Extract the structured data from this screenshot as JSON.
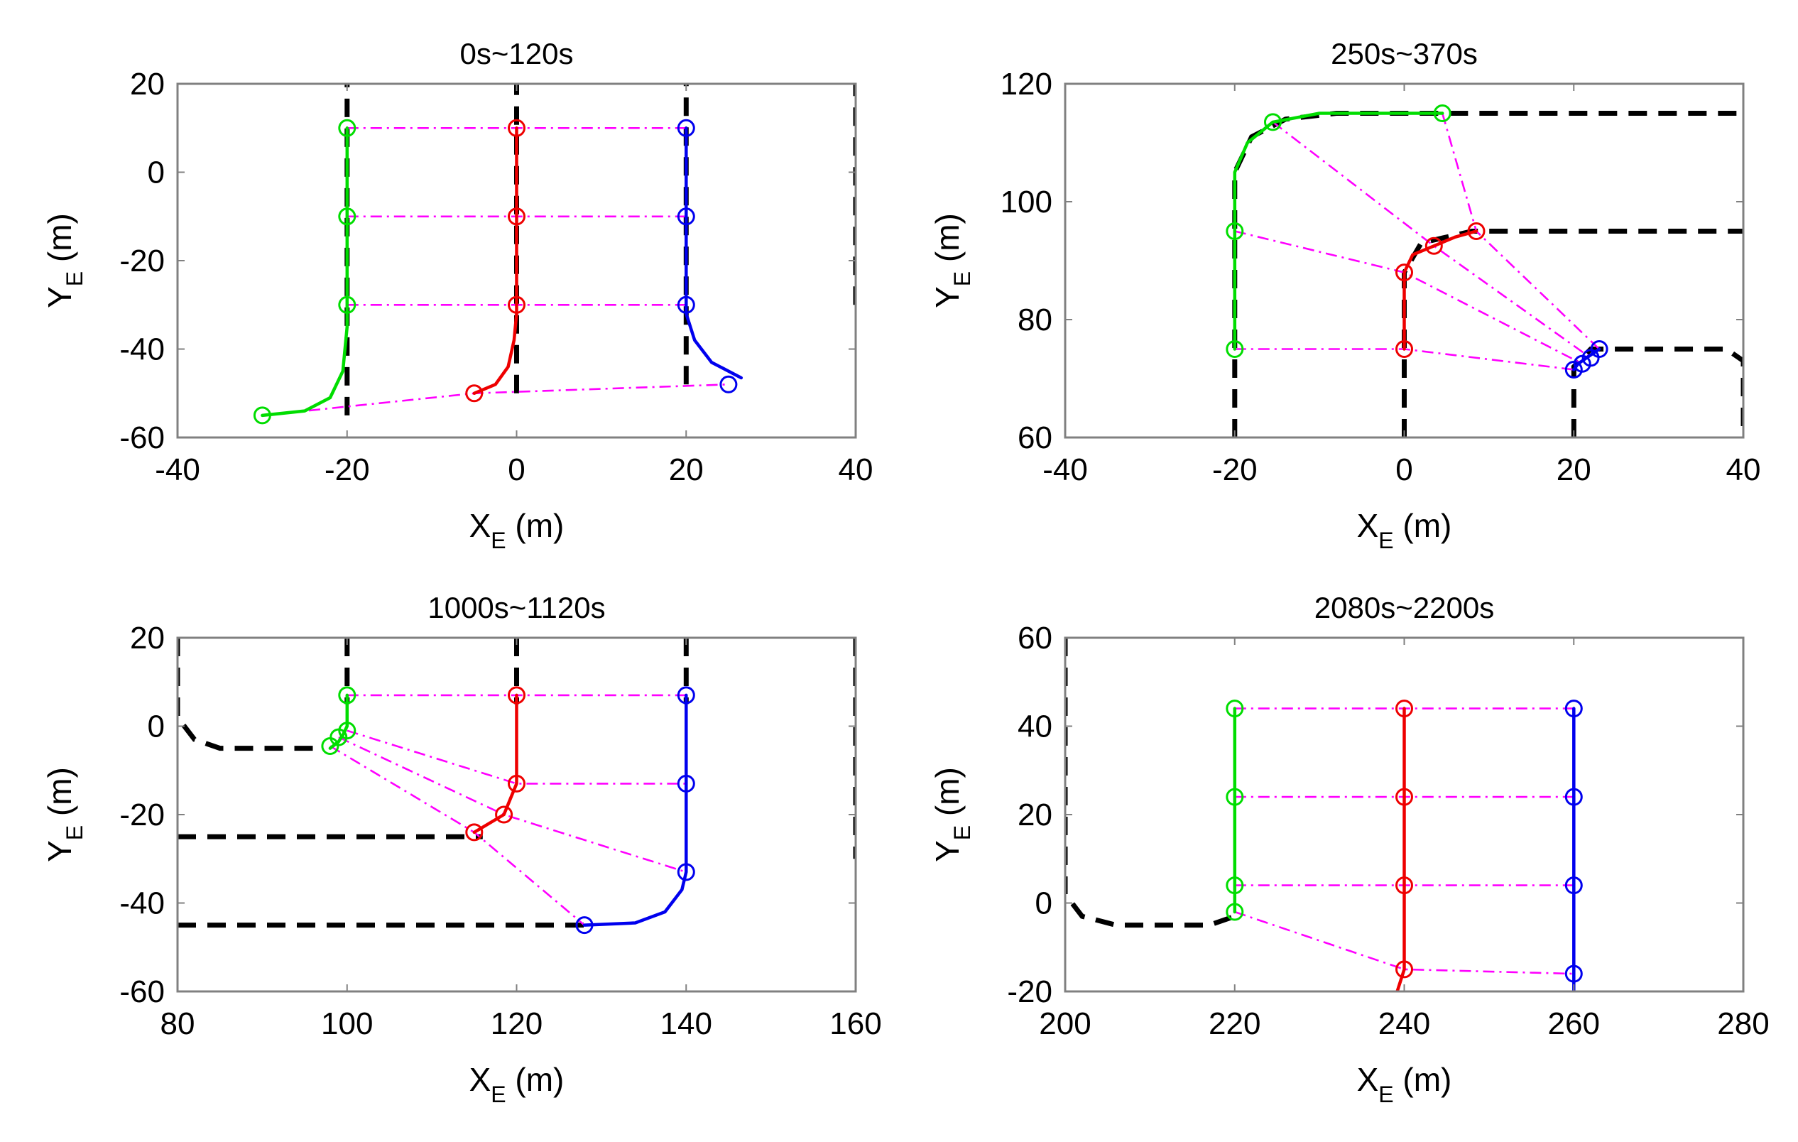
{
  "figure": {
    "background": "#ffffff"
  },
  "colors": {
    "follower_left": "#00dd00",
    "leader": "#ee0000",
    "follower_right": "#0000ee",
    "formation_link": "#ff00ff",
    "reference_path": "#000000",
    "axes": "#808080"
  },
  "chart_data": [
    {
      "type": "line",
      "title": "0s~120s",
      "xlabel": "X",
      "xlabel_sub": "E",
      "xlabel_unit": " (m)",
      "ylabel": "Y",
      "ylabel_sub": "E",
      "ylabel_unit": " (m)",
      "xlim": [
        -40,
        40
      ],
      "ylim": [
        -60,
        20
      ],
      "xticks": [
        -40,
        -20,
        0,
        20,
        40
      ],
      "yticks": [
        -60,
        -40,
        -20,
        0,
        20
      ],
      "reference_paths": [
        [
          [
            -20,
            -55
          ],
          [
            -20,
            20
          ]
        ],
        [
          [
            0,
            -50
          ],
          [
            0,
            20
          ]
        ],
        [
          [
            20,
            -48
          ],
          [
            20,
            20
          ]
        ],
        [
          [
            40,
            -30
          ],
          [
            40,
            20
          ]
        ]
      ],
      "trajectories": [
        {
          "name": "green",
          "points": [
            [
              -30,
              -55
            ],
            [
              -25,
              -54
            ],
            [
              -22,
              -51
            ],
            [
              -20.5,
              -45
            ],
            [
              -20,
              -35
            ],
            [
              -20,
              10
            ]
          ]
        },
        {
          "name": "red",
          "points": [
            [
              -5,
              -50
            ],
            [
              -2.5,
              -48
            ],
            [
              -1,
              -44
            ],
            [
              -0.3,
              -38
            ],
            [
              0,
              -32
            ],
            [
              0,
              10
            ]
          ]
        },
        {
          "name": "blue",
          "points": [
            [
              20,
              10
            ],
            [
              20,
              -32
            ],
            [
              21,
              -38
            ],
            [
              23,
              -43
            ],
            [
              26.5,
              -46.5
            ]
          ]
        }
      ],
      "markers": {
        "green": [
          [
            -20,
            10
          ],
          [
            -20,
            -10
          ],
          [
            -20,
            -30
          ],
          [
            -30,
            -55
          ]
        ],
        "red": [
          [
            0,
            10
          ],
          [
            0,
            -10
          ],
          [
            0,
            -30
          ],
          [
            -5,
            -50
          ]
        ],
        "blue": [
          [
            20,
            10
          ],
          [
            20,
            -10
          ],
          [
            20,
            -30
          ],
          [
            25,
            -48
          ]
        ]
      },
      "formation_links": [
        [
          [
            -20,
            10
          ],
          [
            20,
            10
          ]
        ],
        [
          [
            -20,
            -10
          ],
          [
            20,
            -10
          ]
        ],
        [
          [
            -20,
            -30
          ],
          [
            20,
            -30
          ]
        ],
        [
          [
            -30,
            -55
          ],
          [
            -5,
            -50
          ],
          [
            25,
            -48
          ]
        ]
      ]
    },
    {
      "type": "line",
      "title": "250s~370s",
      "xlabel": "X",
      "xlabel_sub": "E",
      "xlabel_unit": " (m)",
      "ylabel": "Y",
      "ylabel_sub": "E",
      "ylabel_unit": " (m)",
      "xlim": [
        -40,
        40
      ],
      "ylim": [
        60,
        120
      ],
      "xticks": [
        -40,
        -20,
        0,
        20,
        40
      ],
      "yticks": [
        60,
        80,
        100,
        120
      ],
      "reference_paths": [
        [
          [
            -20,
            60
          ],
          [
            -20,
            105
          ],
          [
            -18,
            111
          ],
          [
            -14,
            114
          ],
          [
            -8,
            115
          ],
          [
            40,
            115
          ]
        ],
        [
          [
            0,
            60
          ],
          [
            0,
            88
          ],
          [
            2,
            93
          ],
          [
            8,
            95
          ],
          [
            40,
            95
          ]
        ],
        [
          [
            20,
            60
          ],
          [
            20,
            72
          ],
          [
            22,
            75
          ],
          [
            38,
            75
          ],
          [
            40,
            73
          ],
          [
            40,
            60
          ]
        ]
      ],
      "trajectories": [
        {
          "name": "green",
          "points": [
            [
              -20,
              75
            ],
            [
              -20,
              105
            ],
            [
              -18.5,
              110
            ],
            [
              -15.5,
              113.5
            ],
            [
              -10,
              115
            ],
            [
              4.5,
              115
            ]
          ]
        },
        {
          "name": "red",
          "points": [
            [
              0,
              75
            ],
            [
              0,
              88
            ],
            [
              1,
              91
            ],
            [
              3.5,
              92.5
            ],
            [
              6,
              94
            ],
            [
              8.5,
              95
            ]
          ]
        },
        {
          "name": "blue",
          "points": [
            [
              20,
              71.5
            ],
            [
              20.5,
              72.5
            ],
            [
              21.5,
              73.5
            ],
            [
              23,
              75
            ]
          ]
        }
      ],
      "markers": {
        "green": [
          [
            -20,
            75
          ],
          [
            -20,
            95
          ],
          [
            -15.5,
            113.5
          ],
          [
            4.5,
            115
          ]
        ],
        "red": [
          [
            0,
            75
          ],
          [
            0,
            88
          ],
          [
            3.5,
            92.5
          ],
          [
            8.5,
            95
          ]
        ],
        "blue": [
          [
            20,
            71.5
          ],
          [
            21,
            72.5
          ],
          [
            22,
            73.5
          ],
          [
            23,
            75
          ]
        ]
      },
      "formation_links": [
        [
          [
            -20,
            75
          ],
          [
            0,
            75
          ],
          [
            20,
            71.5
          ]
        ],
        [
          [
            -20,
            95
          ],
          [
            0,
            88
          ],
          [
            21,
            72.5
          ]
        ],
        [
          [
            -15.5,
            113.5
          ],
          [
            3.5,
            92.5
          ],
          [
            22,
            73.5
          ]
        ],
        [
          [
            4.5,
            115
          ],
          [
            8.5,
            95
          ],
          [
            23,
            75
          ]
        ]
      ]
    },
    {
      "type": "line",
      "title": "1000s~1120s",
      "xlabel": "X",
      "xlabel_sub": "E",
      "xlabel_unit": " (m)",
      "ylabel": "Y",
      "ylabel_sub": "E",
      "ylabel_unit": " (m)",
      "xlim": [
        80,
        160
      ],
      "ylim": [
        -60,
        20
      ],
      "xticks": [
        80,
        100,
        120,
        140,
        160
      ],
      "yticks": [
        -60,
        -40,
        -20,
        0,
        20
      ],
      "reference_paths": [
        [
          [
            80,
            20
          ],
          [
            80,
            2
          ],
          [
            82,
            -3
          ],
          [
            85,
            -5
          ],
          [
            97,
            -5
          ]
        ],
        [
          [
            100,
            20
          ],
          [
            100,
            5
          ]
        ],
        [
          [
            80,
            -25
          ],
          [
            116,
            -25
          ]
        ],
        [
          [
            120,
            20
          ],
          [
            120,
            5
          ]
        ],
        [
          [
            80,
            -45
          ],
          [
            128,
            -45
          ]
        ],
        [
          [
            140,
            20
          ],
          [
            140,
            5
          ]
        ],
        [
          [
            160,
            20
          ],
          [
            160,
            -30
          ]
        ]
      ],
      "trajectories": [
        {
          "name": "green",
          "points": [
            [
              98,
              -5
            ],
            [
              99,
              -3.5
            ],
            [
              99.5,
              -2
            ],
            [
              100,
              0
            ],
            [
              100,
              7
            ]
          ]
        },
        {
          "name": "red",
          "points": [
            [
              115,
              -24
            ],
            [
              118.5,
              -20
            ],
            [
              120,
              -13
            ],
            [
              120,
              7
            ]
          ]
        },
        {
          "name": "blue",
          "points": [
            [
              128,
              -45
            ],
            [
              134,
              -44.5
            ],
            [
              137.5,
              -42
            ],
            [
              139.5,
              -37
            ],
            [
              140,
              -33
            ],
            [
              140,
              7
            ]
          ]
        }
      ],
      "markers": {
        "green": [
          [
            100,
            7
          ],
          [
            100,
            -1
          ],
          [
            99,
            -2.5
          ],
          [
            98,
            -4.5
          ]
        ],
        "red": [
          [
            120,
            7
          ],
          [
            120,
            -13
          ],
          [
            118.5,
            -20
          ],
          [
            115,
            -24
          ]
        ],
        "blue": [
          [
            140,
            7
          ],
          [
            140,
            -13
          ],
          [
            140,
            -33
          ],
          [
            128,
            -45
          ]
        ]
      },
      "formation_links": [
        [
          [
            100,
            7
          ],
          [
            120,
            7
          ],
          [
            140,
            7
          ]
        ],
        [
          [
            100,
            -1
          ],
          [
            120,
            -13
          ],
          [
            140,
            -13
          ]
        ],
        [
          [
            99,
            -2.5
          ],
          [
            118.5,
            -20
          ],
          [
            140,
            -33
          ]
        ],
        [
          [
            98,
            -4.5
          ],
          [
            115,
            -24
          ],
          [
            128,
            -45
          ]
        ]
      ]
    },
    {
      "type": "line",
      "title": "2080s~2200s",
      "xlabel": "X",
      "xlabel_sub": "E",
      "xlabel_unit": " (m)",
      "ylabel": "Y",
      "ylabel_sub": "E",
      "ylabel_unit": " (m)",
      "xlim": [
        200,
        280
      ],
      "ylim": [
        -20,
        60
      ],
      "xticks": [
        200,
        220,
        240,
        260,
        280
      ],
      "yticks": [
        -20,
        0,
        20,
        40,
        60
      ],
      "reference_paths": [
        [
          [
            200,
            60
          ],
          [
            200,
            2
          ],
          [
            202,
            -3
          ],
          [
            206,
            -5
          ],
          [
            217,
            -5
          ],
          [
            220,
            -3
          ]
        ]
      ],
      "trajectories": [
        {
          "name": "green",
          "points": [
            [
              220,
              -2
            ],
            [
              220,
              44
            ]
          ]
        },
        {
          "name": "red",
          "points": [
            [
              239,
              -21
            ],
            [
              240,
              -15
            ],
            [
              240,
              44
            ]
          ]
        },
        {
          "name": "blue",
          "points": [
            [
              260,
              -20
            ],
            [
              260,
              -16
            ],
            [
              260,
              44
            ]
          ]
        }
      ],
      "markers": {
        "green": [
          [
            220,
            44
          ],
          [
            220,
            24
          ],
          [
            220,
            4
          ],
          [
            220,
            -2
          ]
        ],
        "red": [
          [
            240,
            44
          ],
          [
            240,
            24
          ],
          [
            240,
            4
          ],
          [
            240,
            -15
          ]
        ],
        "blue": [
          [
            260,
            44
          ],
          [
            260,
            24
          ],
          [
            260,
            4
          ],
          [
            260,
            -16
          ]
        ]
      },
      "formation_links": [
        [
          [
            220,
            44
          ],
          [
            240,
            44
          ],
          [
            260,
            44
          ]
        ],
        [
          [
            220,
            24
          ],
          [
            240,
            24
          ],
          [
            260,
            24
          ]
        ],
        [
          [
            220,
            4
          ],
          [
            240,
            4
          ],
          [
            260,
            4
          ]
        ],
        [
          [
            220,
            -2
          ],
          [
            240,
            -15
          ],
          [
            260,
            -16
          ]
        ]
      ]
    }
  ]
}
